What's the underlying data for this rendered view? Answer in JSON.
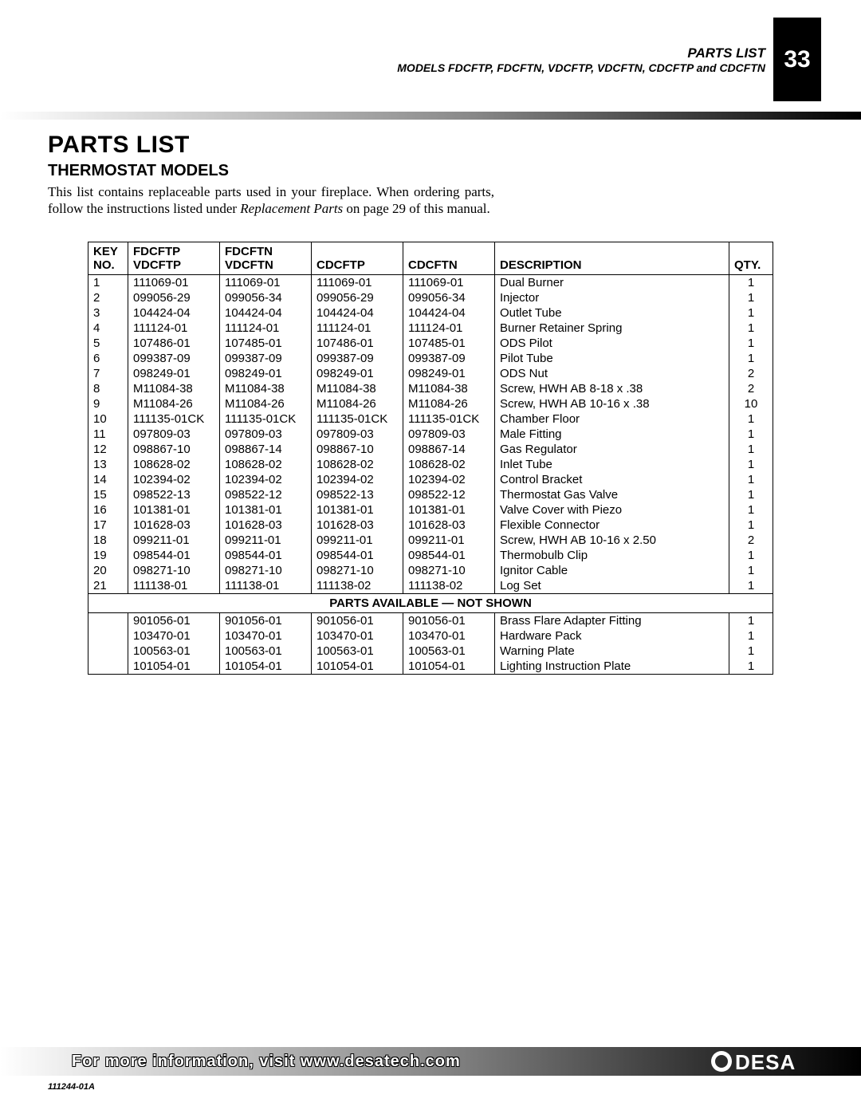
{
  "header": {
    "title": "PARTS LIST",
    "models_line": "MODELS FDCFTP, FDCFTN, VDCFTP, VDCFTN, CDCFTP and CDCFTN",
    "page_number": "33"
  },
  "main": {
    "h1": "PARTS LIST",
    "h2": "THERMOSTAT MODELS",
    "intro_part1": "This list contains replaceable parts used in your fireplace. When ordering parts, follow the instructions listed under ",
    "intro_italic": "Replacement Parts",
    "intro_part2": " on page 29 of this manual."
  },
  "table": {
    "columns": [
      {
        "line1": "KEY",
        "line2": "NO."
      },
      {
        "line1": "FDCFTP",
        "line2": "VDCFTP"
      },
      {
        "line1": "FDCFTN",
        "line2": "VDCFTN"
      },
      {
        "line1": "",
        "line2": "CDCFTP"
      },
      {
        "line1": "",
        "line2": "CDCFTN"
      },
      {
        "line1": "",
        "line2": "DESCRIPTION"
      },
      {
        "line1": "",
        "line2": "QTY."
      }
    ],
    "rows": [
      [
        "1",
        "111069-01",
        "111069-01",
        "111069-01",
        "111069-01",
        "Dual Burner",
        "1"
      ],
      [
        "2",
        "099056-29",
        "099056-34",
        "099056-29",
        "099056-34",
        "Injector",
        "1"
      ],
      [
        "3",
        "104424-04",
        "104424-04",
        "104424-04",
        "104424-04",
        "Outlet Tube",
        "1"
      ],
      [
        "4",
        "111124-01",
        "111124-01",
        "111124-01",
        "111124-01",
        "Burner Retainer Spring",
        "1"
      ],
      [
        "5",
        "107486-01",
        "107485-01",
        "107486-01",
        "107485-01",
        "ODS Pilot",
        "1"
      ],
      [
        "6",
        "099387-09",
        "099387-09",
        "099387-09",
        "099387-09",
        "Pilot Tube",
        "1"
      ],
      [
        "7",
        "098249-01",
        "098249-01",
        "098249-01",
        "098249-01",
        "ODS Nut",
        "2"
      ],
      [
        "8",
        "M11084-38",
        "M11084-38",
        "M11084-38",
        "M11084-38",
        "Screw, HWH AB 8-18 x .38",
        "2"
      ],
      [
        "9",
        "M11084-26",
        "M11084-26",
        "M11084-26",
        "M11084-26",
        "Screw, HWH AB 10-16 x .38",
        "10"
      ],
      [
        "10",
        "111135-01CK",
        "111135-01CK",
        "111135-01CK",
        "111135-01CK",
        "Chamber Floor",
        "1"
      ],
      [
        "11",
        "097809-03",
        "097809-03",
        "097809-03",
        "097809-03",
        "Male Fitting",
        "1"
      ],
      [
        "12",
        "098867-10",
        "098867-14",
        "098867-10",
        "098867-14",
        "Gas Regulator",
        "1"
      ],
      [
        "13",
        "108628-02",
        "108628-02",
        "108628-02",
        "108628-02",
        "Inlet Tube",
        "1"
      ],
      [
        "14",
        "102394-02",
        "102394-02",
        "102394-02",
        "102394-02",
        "Control Bracket",
        "1"
      ],
      [
        "15",
        "098522-13",
        "098522-12",
        "098522-13",
        "098522-12",
        "Thermostat Gas Valve",
        "1"
      ],
      [
        "16",
        "101381-01",
        "101381-01",
        "101381-01",
        "101381-01",
        "Valve Cover with Piezo",
        "1"
      ],
      [
        "17",
        "101628-03",
        "101628-03",
        "101628-03",
        "101628-03",
        "Flexible Connector",
        "1"
      ],
      [
        "18",
        "099211-01",
        "099211-01",
        "099211-01",
        "099211-01",
        "Screw, HWH AB 10-16 x 2.50",
        "2"
      ],
      [
        "19",
        "098544-01",
        "098544-01",
        "098544-01",
        "098544-01",
        "Thermobulb Clip",
        "1"
      ],
      [
        "20",
        "098271-10",
        "098271-10",
        "098271-10",
        "098271-10",
        "Ignitor Cable",
        "1"
      ],
      [
        "21",
        "111138-01",
        "111138-01",
        "111138-02",
        "111138-02",
        "Log Set",
        "1"
      ]
    ],
    "section_label": "PARTS AVAILABLE — NOT SHOWN",
    "rows2": [
      [
        "",
        "901056-01",
        "901056-01",
        "901056-01",
        "901056-01",
        "Brass Flare Adapter Fitting",
        "1"
      ],
      [
        "",
        "103470-01",
        "103470-01",
        "103470-01",
        "103470-01",
        "Hardware Pack",
        "1"
      ],
      [
        "",
        "100563-01",
        "100563-01",
        "100563-01",
        "100563-01",
        "Warning Plate",
        "1"
      ],
      [
        "",
        "101054-01",
        "101054-01",
        "101054-01",
        "101054-01",
        "Lighting Instruction Plate",
        "1"
      ]
    ],
    "col_widths": [
      "50px",
      "115px",
      "115px",
      "115px",
      "115px",
      "auto",
      "55px"
    ]
  },
  "footer": {
    "text": "For more information, visit www.desatech.com",
    "doc_code": "111244-01A",
    "logo_text": "DESA"
  },
  "style": {
    "page_bg": "#ffffff",
    "text_color": "#000000",
    "page_number_bg": "#000000",
    "page_number_fg": "#ffffff"
  }
}
